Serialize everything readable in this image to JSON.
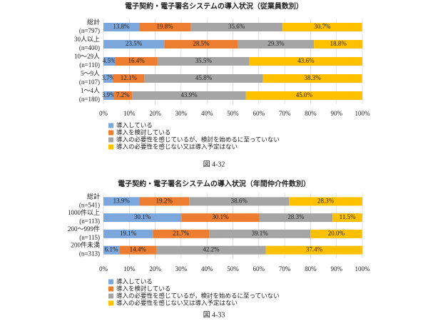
{
  "chart_data": [
    {
      "type": "bar",
      "orientation": "horizontal",
      "stacked": true,
      "title": "電子契約・電子署名システムの導入状況（従業員数別）",
      "categories": [
        "総計",
        "30人以上",
        "10～29人",
        "5～9人",
        "1～4人"
      ],
      "category_notes": [
        "(n=797)",
        "(n=400)",
        "(n=110)",
        "(n=107)",
        "(n=180)"
      ],
      "series": [
        {
          "name": "導入している",
          "color": "#7ba7dc",
          "values": [
            13.8,
            23.5,
            4.5,
            3.7,
            3.9
          ],
          "value_labels": [
            "13.8%",
            "23.5%",
            "4.5%",
            "3.7%",
            "3.9%"
          ]
        },
        {
          "name": "導入を検討している",
          "color": "#ed7d31",
          "values": [
            19.8,
            28.5,
            16.4,
            12.1,
            7.2
          ],
          "value_labels": [
            "19.8%",
            "28.5%",
            "16.4%",
            "12.1%",
            "7.2%"
          ]
        },
        {
          "name": "導入の必要性を感じているが、検討を始めるに至っていない",
          "color": "#a5a5a5",
          "values": [
            35.6,
            29.3,
            35.5,
            45.8,
            43.9
          ],
          "value_labels": [
            "35.6%",
            "29.3%",
            "35.5%",
            "45.8%",
            "43.9%"
          ]
        },
        {
          "name": "導入の必要性を感じない又は導入予定はない",
          "color": "#ffc000",
          "values": [
            30.7,
            18.8,
            43.6,
            38.3,
            45.0
          ],
          "value_labels": [
            "30.7%",
            "18.8%",
            "43.6%",
            "38.3%",
            "45.0%"
          ]
        }
      ],
      "xlim": [
        0,
        100
      ],
      "xticks": [
        {
          "value": 0,
          "label": "0%"
        },
        {
          "value": 10,
          "label": "10%"
        },
        {
          "value": 20,
          "label": "20%"
        },
        {
          "value": 30,
          "label": "30%"
        },
        {
          "value": 40,
          "label": "40%"
        },
        {
          "value": 50,
          "label": "50%"
        },
        {
          "value": 60,
          "label": "60%"
        },
        {
          "value": 70,
          "label": "70%"
        },
        {
          "value": 80,
          "label": "80%"
        },
        {
          "value": 90,
          "label": "90%"
        },
        {
          "value": 100,
          "label": "100%"
        }
      ],
      "grid": true,
      "caption": "図 4-32"
    },
    {
      "type": "bar",
      "orientation": "horizontal",
      "stacked": true,
      "title": "電子契約・電子署名システムの導入状況（年間仲介件数別）",
      "categories": [
        "総計",
        "1000件以上",
        "200～999件",
        "200件未満"
      ],
      "category_notes": [
        "(n=541)",
        "(n=113)",
        "(n=115)",
        "(n=313)"
      ],
      "series": [
        {
          "name": "導入している",
          "color": "#7ba7dc",
          "values": [
            13.9,
            30.1,
            19.1,
            6.1
          ],
          "value_labels": [
            "13.9%",
            "30.1%",
            "19.1%",
            "6.1%"
          ]
        },
        {
          "name": "導入を検討している",
          "color": "#ed7d31",
          "values": [
            19.2,
            30.1,
            21.7,
            14.4
          ],
          "value_labels": [
            "19.2%",
            "30.1%",
            "21.7%",
            "14.4%"
          ]
        },
        {
          "name": "導入の必要性を感じているが，検討を始めるに至っていない",
          "color": "#a5a5a5",
          "values": [
            38.6,
            28.3,
            39.1,
            42.2
          ],
          "value_labels": [
            "38.6%",
            "28.3%",
            "39.1%",
            "42.2%"
          ]
        },
        {
          "name": "導入の必要性を感じない又は導入予定はない",
          "color": "#ffc000",
          "values": [
            28.3,
            11.5,
            20.0,
            37.4
          ],
          "value_labels": [
            "28.3%",
            "11.5%",
            "20.0%",
            "37.4%"
          ]
        }
      ],
      "xlim": [
        0,
        100
      ],
      "xticks": [
        {
          "value": 0,
          "label": "0%"
        },
        {
          "value": 10,
          "label": "10%"
        },
        {
          "value": 20,
          "label": "20%"
        },
        {
          "value": 30,
          "label": "30%"
        },
        {
          "value": 40,
          "label": "40%"
        },
        {
          "value": 50,
          "label": "50%"
        },
        {
          "value": 60,
          "label": "60%"
        },
        {
          "value": 70,
          "label": "70%"
        },
        {
          "value": 80,
          "label": "80%"
        },
        {
          "value": 90,
          "label": "90%"
        },
        {
          "value": 100,
          "label": "100%"
        }
      ],
      "grid": true,
      "caption": "図 4-33"
    }
  ]
}
